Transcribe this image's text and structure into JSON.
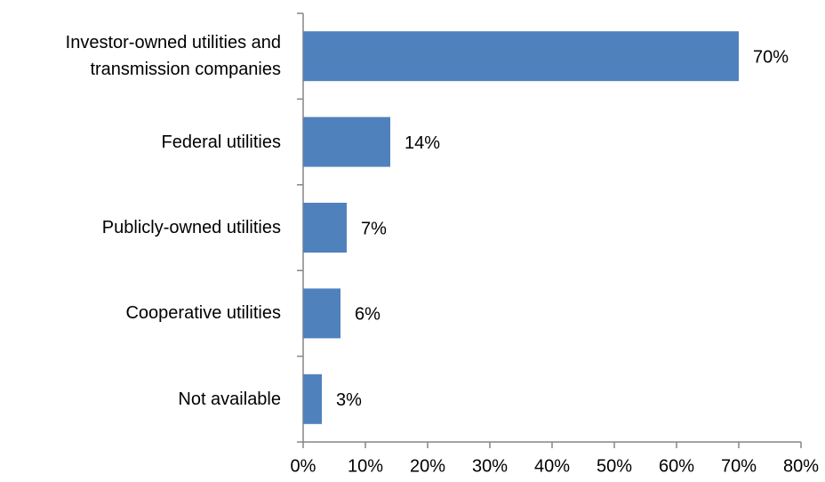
{
  "chart_data": {
    "type": "barh",
    "categories": [
      "Investor-owned utilities and transmission companies",
      "Federal utilities",
      "Publicly-owned utilities",
      "Cooperative utilities",
      "Not available"
    ],
    "values": [
      70,
      14,
      7,
      6,
      3
    ],
    "value_labels": [
      "70%",
      "14%",
      "7%",
      "6%",
      "3%"
    ],
    "color": "#4f81bd",
    "xlim": [
      0,
      80
    ],
    "xticks": [
      {
        "value": 0,
        "label": "0%"
      },
      {
        "value": 10,
        "label": "10%"
      },
      {
        "value": 20,
        "label": "20%"
      },
      {
        "value": 30,
        "label": "30%"
      },
      {
        "value": 40,
        "label": "40%"
      },
      {
        "value": 50,
        "label": "50%"
      },
      {
        "value": 60,
        "label": "60%"
      },
      {
        "value": 70,
        "label": "70%"
      },
      {
        "value": 80,
        "label": "80%"
      }
    ],
    "grid": false
  }
}
